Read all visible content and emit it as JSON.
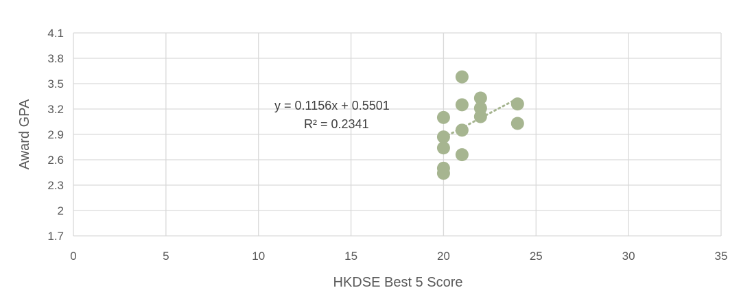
{
  "chart_data": {
    "type": "scatter",
    "xlabel": "HKDSE Best 5 Score",
    "ylabel": "Award GPA",
    "xlim": [
      0,
      35
    ],
    "ylim": [
      1.7,
      4.2
    ],
    "x_ticks": [
      0,
      5,
      10,
      15,
      20,
      25,
      30,
      35
    ],
    "y_ticks": [
      1.7,
      2,
      2.3,
      2.6,
      2.9,
      3.2,
      3.5,
      3.8,
      4.1
    ],
    "grid": true,
    "marker_color": "#a6b590",
    "trendline_color": "#a6b590",
    "points": [
      {
        "x": 20,
        "y": 3.1
      },
      {
        "x": 20,
        "y": 2.87
      },
      {
        "x": 20,
        "y": 2.74
      },
      {
        "x": 20,
        "y": 2.5
      },
      {
        "x": 20,
        "y": 2.44
      },
      {
        "x": 21,
        "y": 3.58
      },
      {
        "x": 21,
        "y": 3.25
      },
      {
        "x": 21,
        "y": 2.95
      },
      {
        "x": 21,
        "y": 2.66
      },
      {
        "x": 22,
        "y": 3.33
      },
      {
        "x": 22,
        "y": 3.21
      },
      {
        "x": 22,
        "y": 3.11
      },
      {
        "x": 24,
        "y": 3.26
      },
      {
        "x": 24,
        "y": 3.03
      }
    ],
    "trendline": {
      "slope": 0.1156,
      "intercept": 0.5501,
      "x_range": [
        20,
        24
      ],
      "equation_label": "y = 0.1156x + 0.5501",
      "r2_label": "R² = 0.2341"
    }
  }
}
